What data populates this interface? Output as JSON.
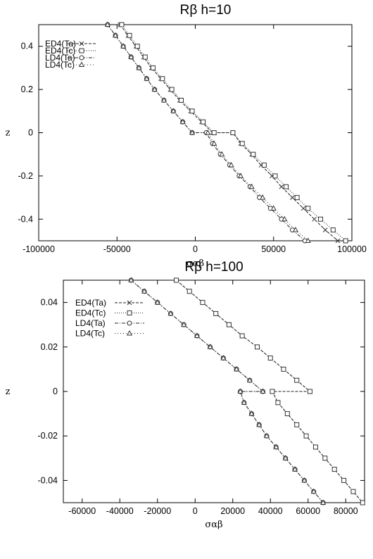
{
  "chart_data": [
    {
      "type": "line",
      "title": "Rβ h=10",
      "xlabel": "σαβ",
      "ylabel": "z",
      "xlim": [
        -100000,
        100000
      ],
      "ylim": [
        -0.5,
        0.5
      ],
      "xticks": [
        "-100000",
        "-50000",
        "0",
        "50000",
        "100000"
      ],
      "yticks": [
        "-0.4",
        "-0.2",
        "0",
        "0.2",
        "0.4"
      ],
      "xtick_values": [
        -100000,
        -50000,
        0,
        50000,
        100000
      ],
      "ytick_values": [
        -0.4,
        -0.2,
        0,
        0.2,
        0.4
      ],
      "grid": false,
      "legend_position": "top-left",
      "series": [
        {
          "name": "ED4(Ta)",
          "marker": "x",
          "dash": "4,2",
          "points": [
            [
              -48000,
              0.5
            ],
            [
              -43000,
              0.45
            ],
            [
              -38000,
              0.4
            ],
            [
              -33000,
              0.35
            ],
            [
              -28000,
              0.3
            ],
            [
              -22000,
              0.25
            ],
            [
              -16000,
              0.2
            ],
            [
              -10000,
              0.15
            ],
            [
              -3000,
              0.1
            ],
            [
              4000,
              0.05
            ],
            [
              11000,
              0
            ],
            [
              24000,
              0
            ],
            [
              29000,
              -0.05
            ],
            [
              36000,
              -0.1
            ],
            [
              42000,
              -0.15
            ],
            [
              49000,
              -0.2
            ],
            [
              55000,
              -0.25
            ],
            [
              62000,
              -0.3
            ],
            [
              69000,
              -0.35
            ],
            [
              76000,
              -0.4
            ],
            [
              83000,
              -0.45
            ],
            [
              91000,
              -0.5
            ]
          ]
        },
        {
          "name": "ED4(Tc)",
          "marker": "square",
          "dash": "1,2",
          "points": [
            [
              -47000,
              0.5
            ],
            [
              -42000,
              0.45
            ],
            [
              -37000,
              0.4
            ],
            [
              -32000,
              0.35
            ],
            [
              -27000,
              0.3
            ],
            [
              -21000,
              0.25
            ],
            [
              -15000,
              0.2
            ],
            [
              -9000,
              0.15
            ],
            [
              -2000,
              0.1
            ],
            [
              5000,
              0.05
            ],
            [
              12000,
              0
            ],
            [
              24000,
              0
            ],
            [
              30000,
              -0.05
            ],
            [
              37000,
              -0.1
            ],
            [
              44000,
              -0.15
            ],
            [
              51000,
              -0.2
            ],
            [
              58000,
              -0.25
            ],
            [
              65000,
              -0.3
            ],
            [
              72000,
              -0.35
            ],
            [
              80000,
              -0.4
            ],
            [
              88000,
              -0.45
            ],
            [
              96000,
              -0.5
            ]
          ]
        },
        {
          "name": "LD4(Ta)",
          "marker": "circle",
          "dash": "5,2,1,2",
          "points": [
            [
              -56000,
              0.5
            ],
            [
              -51000,
              0.45
            ],
            [
              -46000,
              0.4
            ],
            [
              -41000,
              0.35
            ],
            [
              -36000,
              0.3
            ],
            [
              -31000,
              0.25
            ],
            [
              -26000,
              0.2
            ],
            [
              -20000,
              0.15
            ],
            [
              -14000,
              0.1
            ],
            [
              -8000,
              0.05
            ],
            [
              -2000,
              0
            ],
            [
              7000,
              0
            ],
            [
              11000,
              -0.05
            ],
            [
              16000,
              -0.1
            ],
            [
              22000,
              -0.15
            ],
            [
              28000,
              -0.2
            ],
            [
              35000,
              -0.25
            ],
            [
              41000,
              -0.3
            ],
            [
              48000,
              -0.35
            ],
            [
              55000,
              -0.4
            ],
            [
              62000,
              -0.45
            ],
            [
              70000,
              -0.5
            ]
          ]
        },
        {
          "name": "LD4(Tc)",
          "marker": "triangle",
          "dash": "1,3",
          "points": [
            [
              -56000,
              0.5
            ],
            [
              -51000,
              0.45
            ],
            [
              -46000,
              0.4
            ],
            [
              -41000,
              0.35
            ],
            [
              -36000,
              0.3
            ],
            [
              -31000,
              0.25
            ],
            [
              -26000,
              0.2
            ],
            [
              -20000,
              0.15
            ],
            [
              -14000,
              0.1
            ],
            [
              -8000,
              0.05
            ],
            [
              -2000,
              0
            ],
            [
              8000,
              0
            ],
            [
              12000,
              -0.05
            ],
            [
              17000,
              -0.1
            ],
            [
              23000,
              -0.15
            ],
            [
              29000,
              -0.2
            ],
            [
              36000,
              -0.25
            ],
            [
              43000,
              -0.3
            ],
            [
              50000,
              -0.35
            ],
            [
              57000,
              -0.4
            ],
            [
              64000,
              -0.45
            ],
            [
              72000,
              -0.5
            ]
          ]
        }
      ]
    },
    {
      "type": "line",
      "title": "Rβ h=100",
      "xlabel": "σαβ",
      "ylabel": "z",
      "xlim": [
        -70000,
        90000
      ],
      "ylim": [
        -0.05,
        0.05
      ],
      "xticks": [
        "-60000",
        "-40000",
        "-20000",
        "0",
        "20000",
        "40000",
        "60000",
        "80000"
      ],
      "yticks": [
        "-0.04",
        "-0.02",
        "0",
        "0.02",
        "0.04"
      ],
      "xtick_values": [
        -60000,
        -40000,
        -20000,
        0,
        20000,
        40000,
        60000,
        80000
      ],
      "ytick_values": [
        -0.04,
        -0.02,
        0,
        0.02,
        0.04
      ],
      "grid": false,
      "legend_position": "top-left",
      "series": [
        {
          "name": "ED4(Ta)",
          "marker": "x",
          "dash": "4,2",
          "points": [
            [
              -10000,
              0.05
            ],
            [
              -3000,
              0.045
            ],
            [
              4000,
              0.04
            ],
            [
              11000,
              0.035
            ],
            [
              18000,
              0.03
            ],
            [
              25000,
              0.025
            ],
            [
              33000,
              0.02
            ],
            [
              40000,
              0.015
            ],
            [
              47000,
              0.01
            ],
            [
              54000,
              0.005
            ],
            [
              61000,
              0
            ],
            [
              41000,
              0
            ],
            [
              44000,
              -0.005
            ],
            [
              49000,
              -0.01
            ],
            [
              54000,
              -0.015
            ],
            [
              59000,
              -0.02
            ],
            [
              64000,
              -0.025
            ],
            [
              69000,
              -0.03
            ],
            [
              74000,
              -0.035
            ],
            [
              79000,
              -0.04
            ],
            [
              84000,
              -0.045
            ],
            [
              89000,
              -0.05
            ]
          ]
        },
        {
          "name": "ED4(Tc)",
          "marker": "square",
          "dash": "1,2",
          "points": [
            [
              -10000,
              0.05
            ],
            [
              -3000,
              0.045
            ],
            [
              4000,
              0.04
            ],
            [
              11000,
              0.035
            ],
            [
              18000,
              0.03
            ],
            [
              25000,
              0.025
            ],
            [
              33000,
              0.02
            ],
            [
              40000,
              0.015
            ],
            [
              47000,
              0.01
            ],
            [
              54000,
              0.005
            ],
            [
              61000,
              0
            ],
            [
              41000,
              0
            ],
            [
              44000,
              -0.005
            ],
            [
              49000,
              -0.01
            ],
            [
              54000,
              -0.015
            ],
            [
              59000,
              -0.02
            ],
            [
              64000,
              -0.025
            ],
            [
              69000,
              -0.03
            ],
            [
              74000,
              -0.035
            ],
            [
              79000,
              -0.04
            ],
            [
              84000,
              -0.045
            ],
            [
              89000,
              -0.05
            ]
          ]
        },
        {
          "name": "LD4(Ta)",
          "marker": "circle",
          "dash": "5,2,1,2",
          "points": [
            [
              -34000,
              0.05
            ],
            [
              -27000,
              0.045
            ],
            [
              -20000,
              0.04
            ],
            [
              -13000,
              0.035
            ],
            [
              -6000,
              0.03
            ],
            [
              1000,
              0.025
            ],
            [
              8000,
              0.02
            ],
            [
              15000,
              0.015
            ],
            [
              22000,
              0.01
            ],
            [
              29000,
              0.005
            ],
            [
              36000,
              0
            ],
            [
              24000,
              0
            ],
            [
              26000,
              -0.005
            ],
            [
              30000,
              -0.01
            ],
            [
              34000,
              -0.015
            ],
            [
              38000,
              -0.02
            ],
            [
              43000,
              -0.025
            ],
            [
              48000,
              -0.03
            ],
            [
              53000,
              -0.035
            ],
            [
              58000,
              -0.04
            ],
            [
              63000,
              -0.045
            ],
            [
              68000,
              -0.05
            ]
          ]
        },
        {
          "name": "LD4(Tc)",
          "marker": "triangle",
          "dash": "1,3",
          "points": [
            [
              -34000,
              0.05
            ],
            [
              -27000,
              0.045
            ],
            [
              -20000,
              0.04
            ],
            [
              -13000,
              0.035
            ],
            [
              -6000,
              0.03
            ],
            [
              1000,
              0.025
            ],
            [
              8000,
              0.02
            ],
            [
              15000,
              0.015
            ],
            [
              22000,
              0.01
            ],
            [
              29000,
              0.005
            ],
            [
              36000,
              0
            ],
            [
              24000,
              0
            ],
            [
              26000,
              -0.005
            ],
            [
              30000,
              -0.01
            ],
            [
              34000,
              -0.015
            ],
            [
              38000,
              -0.02
            ],
            [
              43000,
              -0.025
            ],
            [
              48000,
              -0.03
            ],
            [
              53000,
              -0.035
            ],
            [
              58000,
              -0.04
            ],
            [
              63000,
              -0.045
            ],
            [
              68000,
              -0.05
            ]
          ]
        }
      ]
    }
  ]
}
